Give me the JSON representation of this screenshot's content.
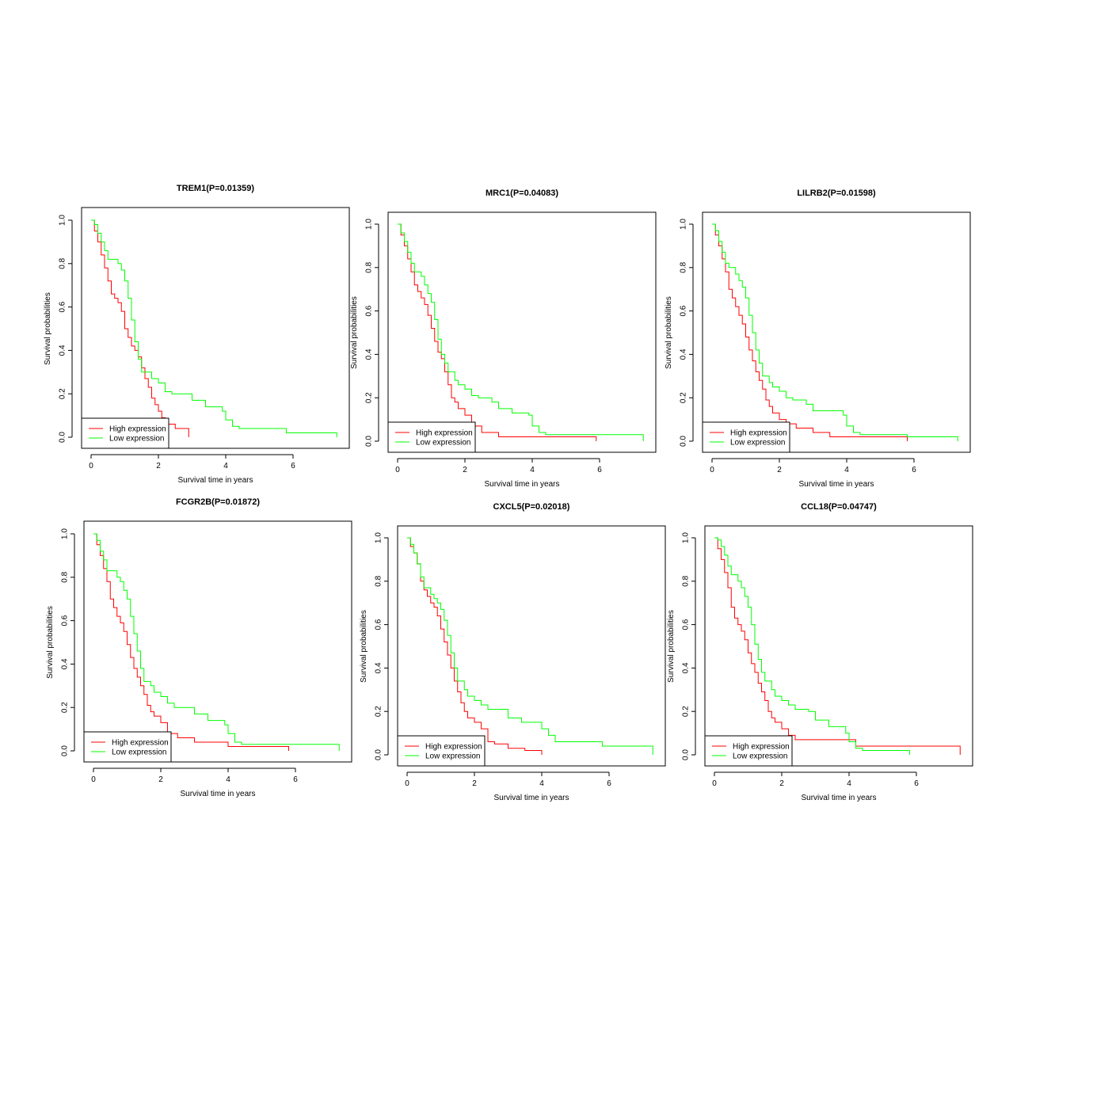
{
  "colors": {
    "high": "#ff0000",
    "low": "#00ff00",
    "axis": "#000000"
  },
  "chart_data": [
    {
      "type": "line",
      "title": "TREM1(P=0.01359)",
      "xlabel": "Survival time in years",
      "ylabel": "Survival probabilities",
      "xlim": [
        0,
        7.5
      ],
      "ylim": [
        0,
        1
      ],
      "xticks": [
        "0",
        "2",
        "4",
        "6"
      ],
      "yticks": [
        "0.0",
        "0.2",
        "0.4",
        "0.6",
        "0.8",
        "1.0"
      ],
      "legend": "bottom-left",
      "series": [
        {
          "name": "High expression",
          "x": [
            0,
            0.1,
            0.2,
            0.3,
            0.4,
            0.5,
            0.6,
            0.7,
            0.8,
            0.9,
            1.0,
            1.1,
            1.2,
            1.3,
            1.4,
            1.5,
            1.6,
            1.7,
            1.8,
            1.9,
            2.0,
            2.1,
            2.2,
            2.5,
            2.9
          ],
          "y": [
            1.0,
            0.95,
            0.9,
            0.84,
            0.78,
            0.72,
            0.66,
            0.64,
            0.62,
            0.58,
            0.5,
            0.46,
            0.42,
            0.4,
            0.37,
            0.32,
            0.27,
            0.23,
            0.18,
            0.15,
            0.12,
            0.09,
            0.06,
            0.04,
            0.0
          ]
        },
        {
          "name": "Low expression",
          "x": [
            0,
            0.1,
            0.2,
            0.3,
            0.4,
            0.5,
            0.7,
            0.8,
            0.9,
            1.0,
            1.1,
            1.2,
            1.3,
            1.4,
            1.5,
            1.7,
            1.8,
            2.0,
            2.2,
            2.4,
            2.8,
            3.0,
            3.4,
            3.9,
            4.0,
            4.2,
            4.4,
            5.8,
            7.3
          ],
          "y": [
            1.0,
            0.98,
            0.94,
            0.9,
            0.86,
            0.82,
            0.82,
            0.8,
            0.77,
            0.72,
            0.64,
            0.54,
            0.44,
            0.36,
            0.3,
            0.3,
            0.27,
            0.25,
            0.21,
            0.2,
            0.2,
            0.17,
            0.14,
            0.12,
            0.08,
            0.05,
            0.04,
            0.02,
            0.0
          ]
        }
      ]
    },
    {
      "type": "line",
      "title": "MRC1(P=0.04083)",
      "xlabel": "Survival time in years",
      "ylabel": "Survival probabilities",
      "xlim": [
        0,
        7.5
      ],
      "ylim": [
        0,
        1
      ],
      "xticks": [
        "0",
        "2",
        "4",
        "6"
      ],
      "yticks": [
        "0.0",
        "0.2",
        "0.4",
        "0.6",
        "0.8",
        "1.0"
      ],
      "legend": "bottom-left",
      "series": [
        {
          "name": "High expression",
          "x": [
            0,
            0.1,
            0.2,
            0.3,
            0.4,
            0.5,
            0.6,
            0.7,
            0.8,
            0.9,
            1.0,
            1.1,
            1.2,
            1.3,
            1.4,
            1.5,
            1.6,
            1.7,
            1.8,
            2.0,
            2.2,
            2.5,
            3.0,
            5.9
          ],
          "y": [
            1.0,
            0.95,
            0.9,
            0.84,
            0.78,
            0.72,
            0.69,
            0.66,
            0.63,
            0.58,
            0.52,
            0.46,
            0.41,
            0.38,
            0.32,
            0.26,
            0.2,
            0.18,
            0.15,
            0.12,
            0.07,
            0.04,
            0.02,
            0.0
          ]
        },
        {
          "name": "Low expression",
          "x": [
            0,
            0.1,
            0.2,
            0.3,
            0.4,
            0.5,
            0.7,
            0.8,
            0.9,
            1.0,
            1.1,
            1.2,
            1.3,
            1.4,
            1.5,
            1.7,
            1.8,
            2.0,
            2.2,
            2.4,
            2.8,
            3.0,
            3.4,
            3.9,
            4.0,
            4.2,
            4.4,
            5.8,
            7.3
          ],
          "y": [
            1.0,
            0.96,
            0.92,
            0.87,
            0.82,
            0.78,
            0.76,
            0.72,
            0.68,
            0.64,
            0.56,
            0.47,
            0.4,
            0.36,
            0.32,
            0.28,
            0.26,
            0.24,
            0.21,
            0.2,
            0.18,
            0.15,
            0.13,
            0.12,
            0.07,
            0.04,
            0.03,
            0.03,
            0.0
          ]
        }
      ]
    },
    {
      "type": "line",
      "title": "LILRB2(P=0.01598)",
      "xlabel": "Survival time in years",
      "ylabel": "Survival probabilities",
      "xlim": [
        0,
        7.5
      ],
      "ylim": [
        0,
        1
      ],
      "xticks": [
        "0",
        "2",
        "4",
        "6"
      ],
      "yticks": [
        "0.0",
        "0.2",
        "0.4",
        "0.6",
        "0.8",
        "1.0"
      ],
      "legend": "bottom-left",
      "series": [
        {
          "name": "High expression",
          "x": [
            0,
            0.1,
            0.2,
            0.3,
            0.4,
            0.5,
            0.6,
            0.7,
            0.8,
            0.9,
            1.0,
            1.1,
            1.2,
            1.3,
            1.4,
            1.5,
            1.6,
            1.7,
            1.8,
            2.0,
            2.2,
            2.5,
            3.0,
            3.5,
            5.8
          ],
          "y": [
            1.0,
            0.95,
            0.9,
            0.84,
            0.78,
            0.7,
            0.66,
            0.62,
            0.58,
            0.54,
            0.48,
            0.42,
            0.37,
            0.32,
            0.28,
            0.24,
            0.19,
            0.16,
            0.13,
            0.1,
            0.08,
            0.06,
            0.04,
            0.02,
            0.0
          ]
        },
        {
          "name": "Low expression",
          "x": [
            0,
            0.1,
            0.2,
            0.3,
            0.4,
            0.5,
            0.7,
            0.8,
            0.9,
            1.0,
            1.1,
            1.2,
            1.3,
            1.4,
            1.5,
            1.7,
            1.8,
            2.0,
            2.2,
            2.4,
            2.8,
            3.0,
            3.4,
            3.9,
            4.0,
            4.2,
            4.4,
            5.8,
            7.3
          ],
          "y": [
            1.0,
            0.97,
            0.92,
            0.87,
            0.82,
            0.8,
            0.77,
            0.74,
            0.71,
            0.66,
            0.58,
            0.5,
            0.42,
            0.36,
            0.3,
            0.27,
            0.25,
            0.23,
            0.2,
            0.19,
            0.17,
            0.14,
            0.14,
            0.12,
            0.07,
            0.04,
            0.03,
            0.02,
            0.0
          ]
        }
      ]
    },
    {
      "type": "line",
      "title": "FCGR2B(P=0.01872)",
      "xlabel": "Survival time in years",
      "ylabel": "Survival probabilities",
      "xlim": [
        0,
        7.5
      ],
      "ylim": [
        0,
        1
      ],
      "xticks": [
        "0",
        "2",
        "4",
        "6"
      ],
      "yticks": [
        "0.0",
        "0.2",
        "0.4",
        "0.6",
        "0.8",
        "1.0"
      ],
      "legend": "bottom-left",
      "series": [
        {
          "name": "High expression",
          "x": [
            0,
            0.1,
            0.2,
            0.3,
            0.4,
            0.5,
            0.6,
            0.7,
            0.8,
            0.9,
            1.0,
            1.1,
            1.2,
            1.3,
            1.4,
            1.5,
            1.6,
            1.7,
            1.8,
            2.0,
            2.2,
            2.5,
            3.0,
            4.0,
            5.8
          ],
          "y": [
            1.0,
            0.95,
            0.9,
            0.84,
            0.78,
            0.7,
            0.66,
            0.62,
            0.59,
            0.55,
            0.49,
            0.43,
            0.38,
            0.34,
            0.3,
            0.26,
            0.21,
            0.18,
            0.16,
            0.13,
            0.08,
            0.06,
            0.04,
            0.02,
            0.0
          ]
        },
        {
          "name": "Low expression",
          "x": [
            0,
            0.1,
            0.2,
            0.3,
            0.4,
            0.5,
            0.7,
            0.8,
            0.9,
            1.0,
            1.1,
            1.2,
            1.3,
            1.4,
            1.5,
            1.7,
            1.8,
            2.0,
            2.2,
            2.4,
            2.8,
            3.0,
            3.4,
            3.9,
            4.0,
            4.2,
            4.4,
            5.8,
            7.3
          ],
          "y": [
            1.0,
            0.97,
            0.92,
            0.88,
            0.83,
            0.83,
            0.8,
            0.78,
            0.74,
            0.7,
            0.62,
            0.54,
            0.46,
            0.38,
            0.32,
            0.3,
            0.27,
            0.25,
            0.22,
            0.2,
            0.2,
            0.17,
            0.14,
            0.12,
            0.08,
            0.04,
            0.03,
            0.03,
            0.0
          ]
        }
      ]
    },
    {
      "type": "line",
      "title": "CXCL5(P=0.02018)",
      "xlabel": "Survival time in years",
      "ylabel": "Survival probabilities",
      "xlim": [
        0,
        7.5
      ],
      "ylim": [
        0,
        1
      ],
      "xticks": [
        "0",
        "2",
        "4",
        "6"
      ],
      "yticks": [
        "0.0",
        "0.2",
        "0.4",
        "0.6",
        "0.8",
        "1.0"
      ],
      "legend": "bottom-left",
      "series": [
        {
          "name": "High expression",
          "x": [
            0,
            0.1,
            0.2,
            0.3,
            0.4,
            0.5,
            0.6,
            0.7,
            0.8,
            0.9,
            1.0,
            1.1,
            1.2,
            1.3,
            1.4,
            1.5,
            1.6,
            1.7,
            1.8,
            2.0,
            2.2,
            2.4,
            2.6,
            3.0,
            3.5,
            4.0
          ],
          "y": [
            1.0,
            0.96,
            0.93,
            0.88,
            0.8,
            0.76,
            0.73,
            0.7,
            0.68,
            0.64,
            0.58,
            0.52,
            0.46,
            0.4,
            0.34,
            0.29,
            0.24,
            0.2,
            0.17,
            0.15,
            0.12,
            0.06,
            0.05,
            0.03,
            0.02,
            0.0
          ]
        },
        {
          "name": "Low expression",
          "x": [
            0,
            0.1,
            0.2,
            0.3,
            0.4,
            0.5,
            0.7,
            0.8,
            0.9,
            1.0,
            1.1,
            1.2,
            1.3,
            1.4,
            1.5,
            1.7,
            1.8,
            2.0,
            2.2,
            2.4,
            2.8,
            3.0,
            3.4,
            3.9,
            4.0,
            4.2,
            4.4,
            5.8,
            7.3
          ],
          "y": [
            1.0,
            0.97,
            0.93,
            0.88,
            0.82,
            0.77,
            0.74,
            0.72,
            0.7,
            0.67,
            0.62,
            0.55,
            0.47,
            0.4,
            0.34,
            0.3,
            0.27,
            0.25,
            0.23,
            0.21,
            0.21,
            0.17,
            0.15,
            0.15,
            0.12,
            0.09,
            0.06,
            0.04,
            0.0
          ]
        }
      ]
    },
    {
      "type": "line",
      "title": "CCL18(P=0.04747)",
      "xlabel": "Survival time in years",
      "ylabel": "Survival probabilities",
      "xlim": [
        0,
        7.5
      ],
      "ylim": [
        0,
        1
      ],
      "xticks": [
        "0",
        "2",
        "4",
        "6"
      ],
      "yticks": [
        "0.0",
        "0.2",
        "0.4",
        "0.6",
        "0.8",
        "1.0"
      ],
      "legend": "bottom-left",
      "series": [
        {
          "name": "High expression",
          "x": [
            0,
            0.1,
            0.2,
            0.3,
            0.4,
            0.5,
            0.6,
            0.7,
            0.8,
            0.9,
            1.0,
            1.1,
            1.2,
            1.3,
            1.4,
            1.5,
            1.6,
            1.7,
            1.8,
            2.0,
            2.2,
            2.4,
            4.2,
            7.3
          ],
          "y": [
            1.0,
            0.95,
            0.9,
            0.84,
            0.77,
            0.68,
            0.63,
            0.6,
            0.57,
            0.53,
            0.47,
            0.42,
            0.38,
            0.33,
            0.29,
            0.25,
            0.2,
            0.17,
            0.15,
            0.12,
            0.09,
            0.07,
            0.04,
            0.0
          ]
        },
        {
          "name": "Low expression",
          "x": [
            0,
            0.1,
            0.2,
            0.3,
            0.4,
            0.5,
            0.7,
            0.8,
            0.9,
            1.0,
            1.1,
            1.2,
            1.3,
            1.4,
            1.5,
            1.7,
            1.8,
            2.0,
            2.2,
            2.4,
            2.8,
            3.0,
            3.4,
            3.9,
            4.0,
            4.2,
            4.4,
            5.8
          ],
          "y": [
            1.0,
            0.99,
            0.96,
            0.92,
            0.87,
            0.83,
            0.8,
            0.77,
            0.73,
            0.68,
            0.6,
            0.51,
            0.44,
            0.38,
            0.34,
            0.3,
            0.27,
            0.25,
            0.23,
            0.21,
            0.2,
            0.16,
            0.13,
            0.1,
            0.06,
            0.03,
            0.02,
            0.0
          ]
        }
      ]
    }
  ]
}
